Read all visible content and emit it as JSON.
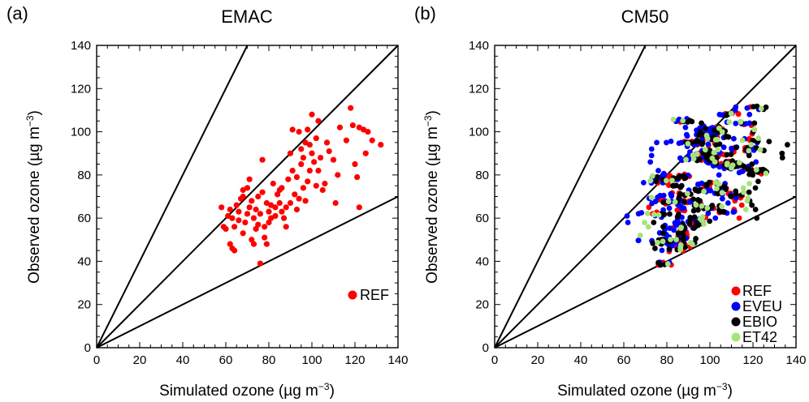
{
  "chart_data": [
    {
      "type": "scatter",
      "panel_label": "(a)",
      "title": "EMAC",
      "xlabel": "Simulated ozone (µg m",
      "ylabel": "Observed ozone (µg m",
      "unit_exponent": "−3",
      "unit_close": ")",
      "xlim": [
        0,
        140
      ],
      "ylim": [
        0,
        140
      ],
      "ticks": [
        0,
        20,
        40,
        60,
        80,
        100,
        120,
        140
      ],
      "reference_line_slopes": [
        2,
        1,
        0.5
      ],
      "grid": false,
      "legend_position": "bottom-right",
      "series": [
        {
          "name": "REF",
          "color": "#ff0000",
          "points": [
            [
              58,
              65
            ],
            [
              59,
              56
            ],
            [
              60,
              55
            ],
            [
              61,
              61
            ],
            [
              62,
              64
            ],
            [
              62,
              48
            ],
            [
              63,
              46
            ],
            [
              63,
              60
            ],
            [
              64,
              45
            ],
            [
              64,
              56
            ],
            [
              65,
              66
            ],
            [
              66,
              59
            ],
            [
              66,
              63
            ],
            [
              67,
              69
            ],
            [
              68,
              70
            ],
            [
              68,
              73
            ],
            [
              68,
              53
            ],
            [
              69,
              58
            ],
            [
              70,
              62
            ],
            [
              70,
              74
            ],
            [
              71,
              65
            ],
            [
              71,
              78
            ],
            [
              72,
              68
            ],
            [
              72,
              50
            ],
            [
              73,
              48
            ],
            [
              73,
              60
            ],
            [
              74,
              64
            ],
            [
              74,
              55
            ],
            [
              75,
              57
            ],
            [
              75,
              70
            ],
            [
              76,
              39
            ],
            [
              76,
              62
            ],
            [
              77,
              72
            ],
            [
              77,
              87
            ],
            [
              78,
              51
            ],
            [
              78,
              56
            ],
            [
              79,
              48
            ],
            [
              79,
              67
            ],
            [
              80,
              63
            ],
            [
              80,
              58
            ],
            [
              81,
              66
            ],
            [
              81,
              60
            ],
            [
              82,
              76
            ],
            [
              83,
              61
            ],
            [
              83,
              65
            ],
            [
              84,
              71
            ],
            [
              85,
              73
            ],
            [
              85,
              67
            ],
            [
              86,
              74
            ],
            [
              86,
              63
            ],
            [
              87,
              60
            ],
            [
              88,
              56
            ],
            [
              88,
              65
            ],
            [
              89,
              78
            ],
            [
              90,
              90
            ],
            [
              90,
              67
            ],
            [
              91,
              101
            ],
            [
              91,
              82
            ],
            [
              92,
              71
            ],
            [
              93,
              79
            ],
            [
              93,
              64
            ],
            [
              94,
              100
            ],
            [
              94,
              69
            ],
            [
              95,
              92
            ],
            [
              95,
              85
            ],
            [
              96,
              74
            ],
            [
              96,
              88
            ],
            [
              97,
              95
            ],
            [
              97,
              68
            ],
            [
              98,
              101
            ],
            [
              98,
              77
            ],
            [
              99,
              94
            ],
            [
              99,
              82
            ],
            [
              100,
              108
            ],
            [
              100,
              90
            ],
            [
              101,
              86
            ],
            [
              102,
              75
            ],
            [
              102,
              97
            ],
            [
              103,
              105
            ],
            [
              103,
              82
            ],
            [
              104,
              88
            ],
            [
              105,
              73
            ],
            [
              106,
              76
            ],
            [
              107,
              95
            ],
            [
              108,
              91
            ],
            [
              110,
              87
            ],
            [
              111,
              67
            ],
            [
              112,
              80
            ],
            [
              113,
              102
            ],
            [
              116,
              96
            ],
            [
              118,
              111
            ],
            [
              119,
              103
            ],
            [
              120,
              85
            ],
            [
              121,
              79
            ],
            [
              122,
              65
            ],
            [
              122,
              102
            ],
            [
              124,
              101
            ],
            [
              125,
              90
            ],
            [
              126,
              100
            ],
            [
              128,
              96
            ],
            [
              132,
              94
            ]
          ]
        }
      ]
    },
    {
      "type": "scatter",
      "panel_label": "(b)",
      "title": "CM50",
      "xlabel": "Simulated ozone (µg m",
      "ylabel": "Observed ozone (µg m",
      "unit_exponent": "−3",
      "unit_close": ")",
      "xlim": [
        0,
        140
      ],
      "ylim": [
        0,
        140
      ],
      "ticks": [
        0,
        20,
        40,
        60,
        80,
        100,
        120,
        140
      ],
      "reference_line_slopes": [
        2,
        1,
        0.5
      ],
      "grid": false,
      "legend_position": "bottom-right",
      "observed_values": [
        39,
        45,
        47,
        48,
        49,
        50,
        51,
        53,
        55,
        56,
        57,
        58,
        59,
        60,
        61,
        62,
        63,
        64,
        65,
        66,
        67,
        68,
        69,
        70,
        71,
        72,
        73,
        74,
        75,
        76,
        77,
        78,
        79,
        80,
        81,
        82,
        83,
        84,
        85,
        86,
        87,
        88,
        89,
        90,
        91,
        92,
        93,
        94,
        95,
        96,
        97,
        98,
        99,
        100,
        101,
        102,
        104,
        105,
        108,
        111
      ],
      "series": [
        {
          "name": "REF",
          "color": "#ff0000",
          "x_offset": 1,
          "x_jitter": 4,
          "clusters": [
            [
              72,
              62,
              68
            ],
            [
              112,
              60,
              70
            ],
            [
              95,
              90,
              100
            ],
            [
              118,
              96,
              104
            ]
          ]
        },
        {
          "name": "EVEU",
          "color": "#0000ff",
          "x_offset": -3,
          "x_jitter": 7,
          "clusters": [
            [
              66,
              58,
              64
            ],
            [
              108,
              60,
              90
            ],
            [
              78,
              82,
              96
            ],
            [
              94,
              96,
              106
            ],
            [
              124,
              84,
              96
            ],
            [
              118,
              104,
              110
            ]
          ]
        },
        {
          "name": "EBIO",
          "color": "#000000",
          "x_offset": 2,
          "x_jitter": 5,
          "clusters": [
            [
              74,
              46,
              62
            ],
            [
              118,
              60,
              90
            ],
            [
              92,
              96,
              104
            ],
            [
              132,
              88,
              96
            ],
            [
              120,
              96,
              106
            ]
          ]
        },
        {
          "name": "ET42",
          "color": "#a7e37a",
          "x_offset": 0,
          "x_jitter": 6,
          "clusters": [
            [
              70,
              52,
              58
            ],
            [
              116,
              64,
              76
            ],
            [
              122,
              94,
              104
            ]
          ]
        }
      ]
    }
  ]
}
